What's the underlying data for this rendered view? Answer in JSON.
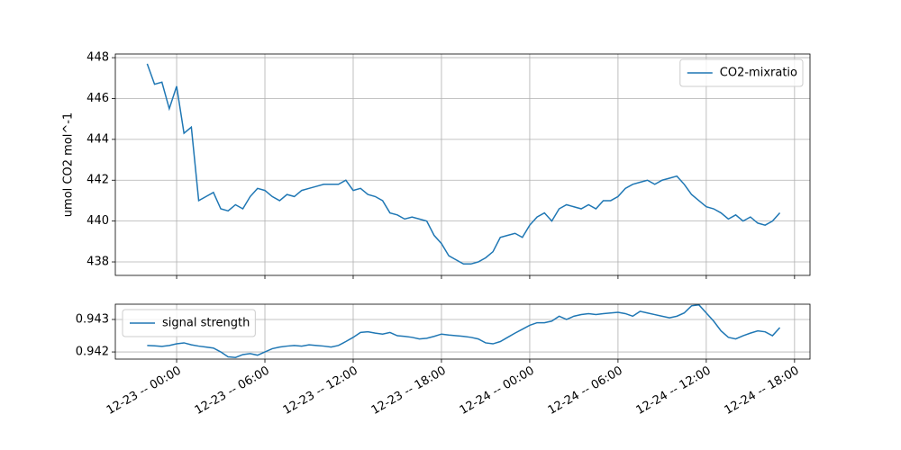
{
  "chart_data": [
    {
      "type": "line",
      "ylabel": "umol CO2 mol^-1",
      "grid": true,
      "legend": "upper right",
      "xlim": [
        "12-22 19:50",
        "12-24 19:03"
      ],
      "ylim": [
        437.34,
        448.18
      ],
      "yticks": [
        438,
        440,
        442,
        444,
        446,
        448
      ],
      "x": [
        "12-22 22:00",
        "12-22 22:30",
        "12-22 23:00",
        "12-22 23:30",
        "12-23 00:00",
        "12-23 00:30",
        "12-23 01:00",
        "12-23 01:30",
        "12-23 02:00",
        "12-23 02:30",
        "12-23 03:00",
        "12-23 03:30",
        "12-23 04:00",
        "12-23 04:30",
        "12-23 05:00",
        "12-23 05:30",
        "12-23 06:00",
        "12-23 06:30",
        "12-23 07:00",
        "12-23 07:30",
        "12-23 08:00",
        "12-23 08:30",
        "12-23 09:00",
        "12-23 09:30",
        "12-23 10:00",
        "12-23 10:30",
        "12-23 11:00",
        "12-23 11:30",
        "12-23 12:00",
        "12-23 12:30",
        "12-23 13:00",
        "12-23 13:30",
        "12-23 14:00",
        "12-23 14:30",
        "12-23 15:00",
        "12-23 15:30",
        "12-23 16:00",
        "12-23 16:30",
        "12-23 17:00",
        "12-23 17:30",
        "12-23 18:00",
        "12-23 18:30",
        "12-23 19:00",
        "12-23 19:30",
        "12-23 20:00",
        "12-23 20:30",
        "12-23 21:00",
        "12-23 21:30",
        "12-23 22:00",
        "12-23 22:30",
        "12-23 23:00",
        "12-23 23:30",
        "12-24 00:00",
        "12-24 00:30",
        "12-24 01:00",
        "12-24 01:30",
        "12-24 02:00",
        "12-24 02:30",
        "12-24 03:00",
        "12-24 03:30",
        "12-24 04:00",
        "12-24 04:30",
        "12-24 05:00",
        "12-24 05:30",
        "12-24 06:00",
        "12-24 06:30",
        "12-24 07:00",
        "12-24 07:30",
        "12-24 08:00",
        "12-24 08:30",
        "12-24 09:00",
        "12-24 09:30",
        "12-24 10:00",
        "12-24 10:30",
        "12-24 11:00",
        "12-24 11:30",
        "12-24 12:00",
        "12-24 12:30",
        "12-24 13:00",
        "12-24 13:30",
        "12-24 14:00",
        "12-24 14:30",
        "12-24 15:00",
        "12-24 15:30",
        "12-24 16:00",
        "12-24 16:30",
        "12-24 17:00"
      ],
      "series": [
        {
          "name": "CO2-mixratio",
          "color": "#1f77b4",
          "values": [
            447.7,
            446.7,
            446.8,
            445.5,
            446.6,
            444.3,
            444.6,
            441.0,
            441.2,
            441.4,
            440.6,
            440.5,
            440.8,
            440.6,
            441.2,
            441.6,
            441.5,
            441.2,
            441.0,
            441.3,
            441.2,
            441.5,
            441.6,
            441.7,
            441.8,
            441.8,
            441.8,
            442.0,
            441.5,
            441.6,
            441.3,
            441.2,
            441.0,
            440.4,
            440.3,
            440.1,
            440.2,
            440.1,
            440.0,
            439.3,
            438.9,
            438.3,
            438.1,
            437.9,
            437.9,
            438.0,
            438.2,
            438.5,
            439.2,
            439.3,
            439.4,
            439.2,
            439.8,
            440.2,
            440.4,
            440.0,
            440.6,
            440.8,
            440.7,
            440.6,
            440.8,
            440.6,
            441.0,
            441.0,
            441.2,
            441.6,
            441.8,
            441.9,
            442.0,
            441.8,
            442.0,
            442.1,
            442.2,
            441.8,
            441.3,
            441.0,
            440.7,
            440.6,
            440.4,
            440.1,
            440.3,
            440.0,
            440.2,
            439.9,
            439.8,
            440.0,
            440.4
          ]
        }
      ]
    },
    {
      "type": "line",
      "grid": true,
      "legend": "upper left",
      "xlim": [
        "12-22 19:50",
        "12-24 19:03"
      ],
      "ylim": [
        0.94178,
        0.94347
      ],
      "yticks": [
        0.942,
        0.943
      ],
      "xticks": [
        {
          "value": "12-23 00:00",
          "label": "12-23 -- 00:00"
        },
        {
          "value": "12-23 06:00",
          "label": "12-23 -- 06:00"
        },
        {
          "value": "12-23 12:00",
          "label": "12-23 -- 12:00"
        },
        {
          "value": "12-23 18:00",
          "label": "12-23 -- 18:00"
        },
        {
          "value": "12-24 00:00",
          "label": "12-24 -- 00:00"
        },
        {
          "value": "12-24 06:00",
          "label": "12-24 -- 06:00"
        },
        {
          "value": "12-24 12:00",
          "label": "12-24 -- 12:00"
        },
        {
          "value": "12-24 18:00",
          "label": "12-24 -- 18:00"
        }
      ],
      "x": [
        "12-22 22:00",
        "12-22 22:30",
        "12-22 23:00",
        "12-22 23:30",
        "12-23 00:00",
        "12-23 00:30",
        "12-23 01:00",
        "12-23 01:30",
        "12-23 02:00",
        "12-23 02:30",
        "12-23 03:00",
        "12-23 03:30",
        "12-23 04:00",
        "12-23 04:30",
        "12-23 05:00",
        "12-23 05:30",
        "12-23 06:00",
        "12-23 06:30",
        "12-23 07:00",
        "12-23 07:30",
        "12-23 08:00",
        "12-23 08:30",
        "12-23 09:00",
        "12-23 09:30",
        "12-23 10:00",
        "12-23 10:30",
        "12-23 11:00",
        "12-23 11:30",
        "12-23 12:00",
        "12-23 12:30",
        "12-23 13:00",
        "12-23 13:30",
        "12-23 14:00",
        "12-23 14:30",
        "12-23 15:00",
        "12-23 15:30",
        "12-23 16:00",
        "12-23 16:30",
        "12-23 17:00",
        "12-23 17:30",
        "12-23 18:00",
        "12-23 18:30",
        "12-23 19:00",
        "12-23 19:30",
        "12-23 20:00",
        "12-23 20:30",
        "12-23 21:00",
        "12-23 21:30",
        "12-23 22:00",
        "12-23 22:30",
        "12-23 23:00",
        "12-23 23:30",
        "12-24 00:00",
        "12-24 00:30",
        "12-24 01:00",
        "12-24 01:30",
        "12-24 02:00",
        "12-24 02:30",
        "12-24 03:00",
        "12-24 03:30",
        "12-24 04:00",
        "12-24 04:30",
        "12-24 05:00",
        "12-24 05:30",
        "12-24 06:00",
        "12-24 06:30",
        "12-24 07:00",
        "12-24 07:30",
        "12-24 08:00",
        "12-24 08:30",
        "12-24 09:00",
        "12-24 09:30",
        "12-24 10:00",
        "12-24 10:30",
        "12-24 11:00",
        "12-24 11:30",
        "12-24 12:00",
        "12-24 12:30",
        "12-24 13:00",
        "12-24 13:30",
        "12-24 14:00",
        "12-24 14:30",
        "12-24 15:00",
        "12-24 15:30",
        "12-24 16:00",
        "12-24 16:30",
        "12-24 17:00"
      ],
      "series": [
        {
          "name": "signal strength",
          "color": "#1f77b4",
          "values": [
            0.9422,
            0.94219,
            0.94217,
            0.9422,
            0.94225,
            0.94228,
            0.94222,
            0.94218,
            0.94215,
            0.94212,
            0.942,
            0.94185,
            0.94183,
            0.94192,
            0.94195,
            0.9419,
            0.942,
            0.9421,
            0.94215,
            0.94218,
            0.9422,
            0.94218,
            0.94222,
            0.9422,
            0.94218,
            0.94215,
            0.9422,
            0.94232,
            0.94245,
            0.9426,
            0.94262,
            0.94258,
            0.94255,
            0.9426,
            0.9425,
            0.94248,
            0.94245,
            0.9424,
            0.94242,
            0.94248,
            0.94255,
            0.94252,
            0.9425,
            0.94248,
            0.94245,
            0.9424,
            0.94228,
            0.94225,
            0.94232,
            0.94245,
            0.94258,
            0.9427,
            0.94282,
            0.9429,
            0.9429,
            0.94295,
            0.9431,
            0.943,
            0.9431,
            0.94315,
            0.94318,
            0.94315,
            0.94318,
            0.9432,
            0.94322,
            0.94318,
            0.9431,
            0.94325,
            0.9432,
            0.94315,
            0.9431,
            0.94305,
            0.9431,
            0.9432,
            0.94342,
            0.94345,
            0.9432,
            0.94295,
            0.94265,
            0.94245,
            0.9424,
            0.9425,
            0.94258,
            0.94265,
            0.94262,
            0.9425,
            0.94275
          ]
        }
      ]
    }
  ]
}
